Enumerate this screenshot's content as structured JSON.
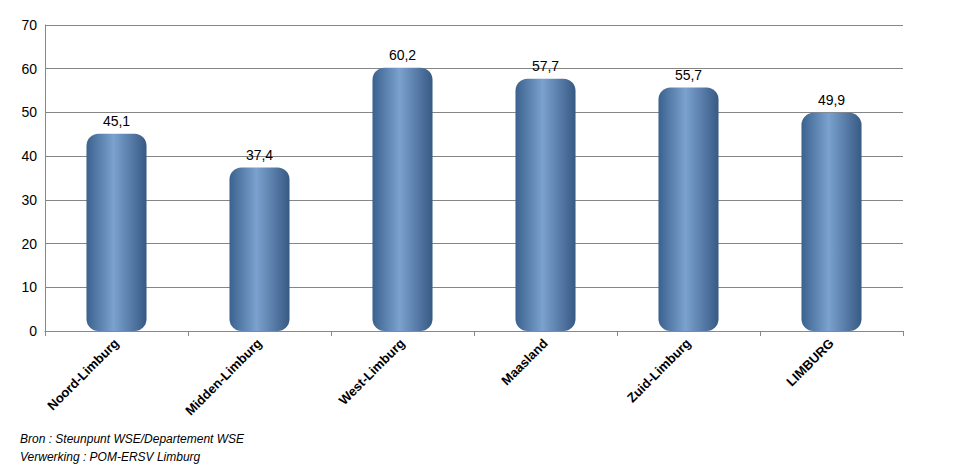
{
  "chart_data": {
    "type": "bar",
    "categories": [
      "Noord-Limburg",
      "Midden-Limburg",
      "West-Limburg",
      "Maasland",
      "Zuid-Limburg",
      "LIMBURG"
    ],
    "values": [
      45.1,
      37.4,
      60.2,
      57.7,
      55.7,
      49.9
    ],
    "value_labels": [
      "45,1",
      "37,4",
      "60,2",
      "57,7",
      "55,7",
      "49,9"
    ],
    "color": "#4f81bd",
    "ylim": [
      0,
      70
    ],
    "yticks": [
      0,
      10,
      20,
      30,
      40,
      50,
      60,
      70
    ],
    "grid": true,
    "data_labels": true,
    "annotations": [
      "Bron : Steunpunt WSE/Departement WSE",
      "Verwerking : POM-ERSV Limburg"
    ]
  }
}
